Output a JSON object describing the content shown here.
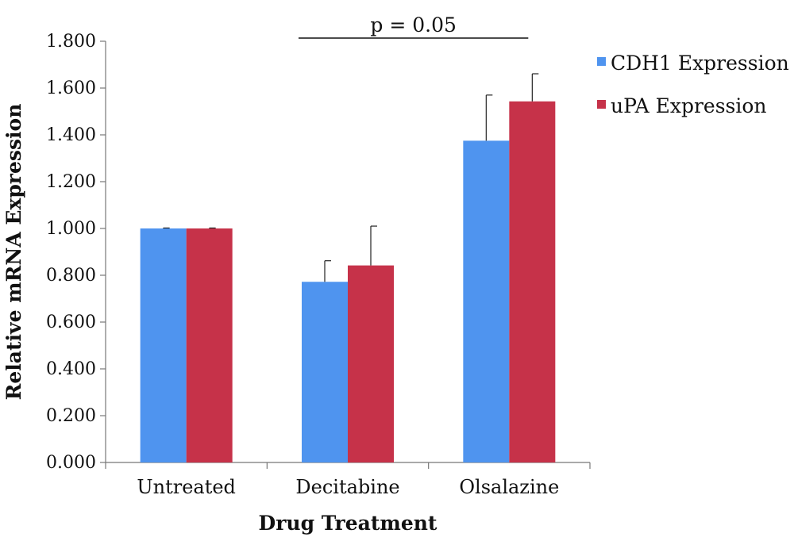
{
  "chart_data": {
    "type": "bar",
    "title": "",
    "xlabel": "Drug Treatment",
    "ylabel": "Relative mRNA Expression",
    "ylim": [
      0,
      1.8
    ],
    "yticks": [
      "0.000",
      "0.200",
      "0.400",
      "0.600",
      "0.800",
      "1.000",
      "1.200",
      "1.400",
      "1.600",
      "1.800"
    ],
    "categories": [
      "Untreated",
      "Decitabine",
      "Olsalazine"
    ],
    "series": [
      {
        "name": "CDH1 Expression",
        "color": "#4f94ef",
        "values": [
          1.0,
          0.772,
          1.375
        ],
        "errors": [
          0.002,
          0.09,
          0.195
        ]
      },
      {
        "name": "uPA Expression",
        "color": "#c63249",
        "values": [
          1.0,
          0.842,
          1.543
        ],
        "errors": [
          0.002,
          0.168,
          0.118
        ]
      }
    ],
    "annotation": {
      "text": "p = 0.05",
      "from": "Decitabine",
      "to": "Olsalazine"
    },
    "legend_position": "top-right",
    "grid": false
  }
}
